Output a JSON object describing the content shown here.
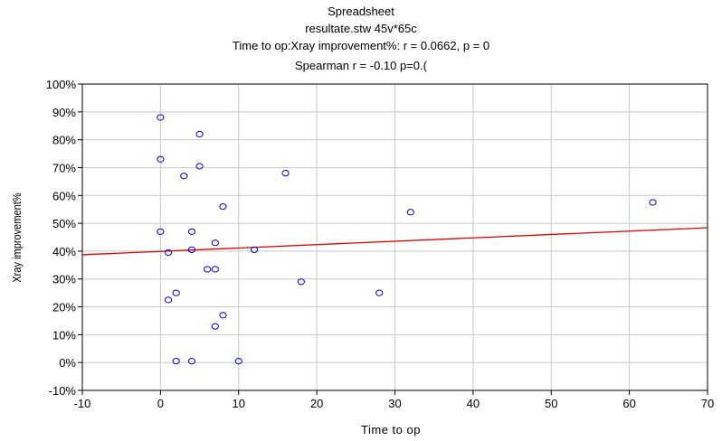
{
  "chart_data": {
    "type": "scatter",
    "title_lines": [
      "Spreadsheet",
      "resultate.stw 45v*65c",
      "Time to op:Xray improvement%:   r = 0.0662, p = 0",
      "Spearman r = -0.10 p=0.("
    ],
    "xlabel": "Time to op",
    "ylabel": "Xray improvement%",
    "xlim": [
      -10,
      70
    ],
    "ylim": [
      -10,
      100
    ],
    "x_ticks": [
      -10,
      0,
      10,
      20,
      30,
      40,
      50,
      60,
      70
    ],
    "x_tick_labels": [
      "-10",
      "0",
      "10",
      "20",
      "30",
      "40",
      "50",
      "60",
      "70"
    ],
    "y_ticks": [
      -10,
      0,
      10,
      20,
      30,
      40,
      50,
      60,
      70,
      80,
      90,
      100
    ],
    "y_tick_labels": [
      "-10%",
      "0%",
      "10%",
      "20%",
      "30%",
      "40%",
      "50%",
      "60%",
      "70%",
      "80%",
      "90%",
      "100%"
    ],
    "grid": true,
    "points": [
      {
        "x": 0,
        "y": 88
      },
      {
        "x": 5,
        "y": 82
      },
      {
        "x": 0,
        "y": 73
      },
      {
        "x": 5,
        "y": 70.5
      },
      {
        "x": 3,
        "y": 67
      },
      {
        "x": 16,
        "y": 68
      },
      {
        "x": 8,
        "y": 56
      },
      {
        "x": 63,
        "y": 57.5
      },
      {
        "x": 32,
        "y": 54
      },
      {
        "x": 0,
        "y": 47
      },
      {
        "x": 4,
        "y": 47
      },
      {
        "x": 7,
        "y": 43
      },
      {
        "x": 1,
        "y": 39.5
      },
      {
        "x": 4,
        "y": 40.5
      },
      {
        "x": 12,
        "y": 40.5
      },
      {
        "x": 6,
        "y": 33.5
      },
      {
        "x": 7,
        "y": 33.5
      },
      {
        "x": 18,
        "y": 29
      },
      {
        "x": 2,
        "y": 25
      },
      {
        "x": 28,
        "y": 25
      },
      {
        "x": 1,
        "y": 22.5
      },
      {
        "x": 8,
        "y": 17
      },
      {
        "x": 7,
        "y": 13
      },
      {
        "x": 2,
        "y": 0.5
      },
      {
        "x": 4,
        "y": 0.5
      },
      {
        "x": 10,
        "y": 0.5
      }
    ],
    "fit_line": {
      "x1": -10,
      "y1": 38.7,
      "x2": 70,
      "y2": 48.4
    },
    "point_color": "#0000cc",
    "line_color": "#e00000",
    "grid_color": "#c8c8c8"
  }
}
